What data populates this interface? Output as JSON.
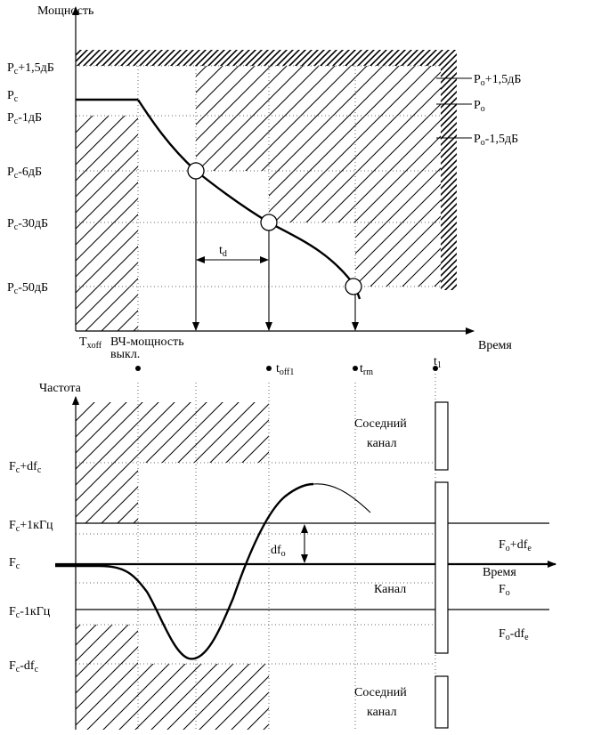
{
  "top_chart": {
    "y_title": "Мощность",
    "x_title": "Время",
    "y_labels": {
      "pc_plus": [
        "P",
        "c",
        "+1,5дБ"
      ],
      "pc": [
        "P",
        "c",
        ""
      ],
      "pc_m1": [
        "P",
        "c",
        "-1дБ"
      ],
      "pc_m6": [
        "P",
        "c",
        "-6дБ"
      ],
      "pc_m30": [
        "P",
        "c",
        "-30дБ"
      ],
      "pc_m50": [
        "P",
        "c",
        "-50дБ"
      ]
    },
    "right_labels": {
      "po_plus": [
        "P",
        "o",
        "+1,5дБ"
      ],
      "po": [
        "P",
        "o",
        ""
      ],
      "po_minus": [
        "P",
        "o",
        "-1,5дБ"
      ]
    },
    "td": [
      "t",
      "d"
    ],
    "txoff": [
      "T",
      "xoff"
    ],
    "rf_off_line1": "ВЧ-мощность",
    "rf_off_line2": "выкл.",
    "toff1": [
      "t",
      "off1"
    ],
    "trm": [
      "t",
      "rm"
    ],
    "t1": [
      "t",
      "1"
    ]
  },
  "bottom_chart": {
    "y_title": "Частота",
    "x_title": "Время",
    "y_labels": {
      "fc_plus_df": [
        "F",
        "c",
        "+df",
        "c"
      ],
      "fc_plus_1k": [
        "F",
        "c",
        "+1кГц",
        ""
      ],
      "fc": [
        "F",
        "c",
        "",
        ""
      ],
      "fc_minus_1k": [
        "F",
        "c",
        "-1кГц",
        ""
      ],
      "fc_minus_df": [
        "F",
        "c",
        "-df",
        "c"
      ]
    },
    "dfo": [
      "df",
      "o"
    ],
    "right_labels": {
      "fo_plus": [
        "F",
        "o",
        "+df",
        "e"
      ],
      "fo": [
        "F",
        "o",
        "",
        ""
      ],
      "fo_minus": [
        "F",
        "o",
        "-df",
        "e"
      ]
    },
    "neighbor_top_1": "Соседний",
    "neighbor_top_2": "канал",
    "channel": "Канал",
    "neighbor_bot_1": "Соседний",
    "neighbor_bot_2": "канал"
  }
}
